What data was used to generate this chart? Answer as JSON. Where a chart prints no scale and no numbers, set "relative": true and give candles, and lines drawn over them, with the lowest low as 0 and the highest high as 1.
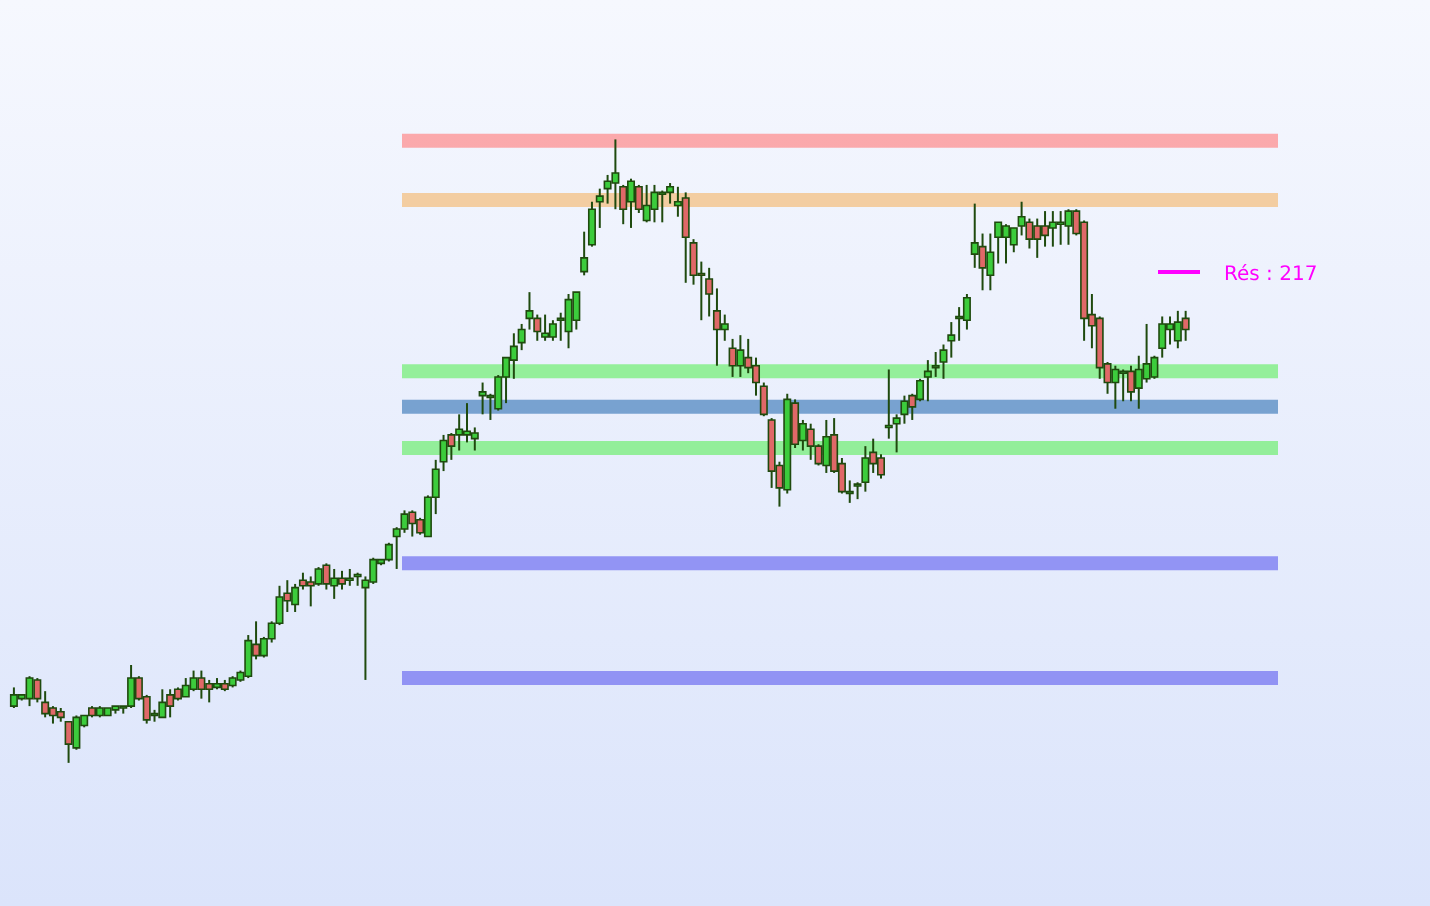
{
  "chart_data": {
    "type": "candlestick",
    "relative": true,
    "categories": [
      null,
      null,
      null,
      null,
      null,
      null,
      null,
      null,
      null,
      null,
      null,
      null,
      null,
      null,
      null,
      null,
      null,
      null,
      null,
      null,
      null,
      null,
      null,
      null,
      null,
      null,
      null,
      null,
      null,
      null,
      null,
      null,
      null,
      null,
      null,
      null,
      null,
      null,
      null,
      null,
      null,
      null,
      null,
      null,
      null,
      null,
      null,
      null,
      null,
      null,
      null,
      null,
      null,
      null,
      null,
      null,
      null,
      null,
      null,
      null,
      null,
      null,
      null,
      null,
      null,
      null,
      null,
      null,
      null,
      null,
      null,
      null,
      null,
      null,
      null,
      null,
      null,
      null,
      null,
      null,
      null,
      null,
      null,
      null,
      null,
      null,
      null,
      null,
      null,
      null,
      null,
      null,
      null,
      null,
      null,
      null,
      null,
      null,
      null,
      null,
      null,
      null,
      null,
      null,
      null,
      null,
      null,
      null,
      null,
      null,
      null,
      null,
      null,
      null,
      null,
      null,
      null,
      null,
      null,
      null,
      null,
      null,
      null,
      null,
      null,
      null,
      null,
      null,
      null,
      null,
      null,
      null,
      null,
      null,
      null,
      null,
      null,
      null,
      null,
      null,
      null,
      null,
      null,
      null,
      null,
      null,
      null,
      null,
      null,
      null,
      null
    ],
    "ohlc": [
      [
        0.091,
        0.121,
        0.088,
        0.109
      ],
      [
        0.103,
        0.109,
        0.1,
        0.109
      ],
      [
        0.103,
        0.139,
        0.091,
        0.136
      ],
      [
        0.133,
        0.136,
        0.097,
        0.103
      ],
      [
        0.097,
        0.115,
        0.073,
        0.079
      ],
      [
        0.088,
        0.091,
        0.063,
        0.076
      ],
      [
        0.082,
        0.088,
        0.066,
        0.073
      ],
      [
        0.066,
        0.066,
        0,
        0.03
      ],
      [
        0.024,
        0.076,
        0.021,
        0.073
      ],
      [
        0.06,
        0.076,
        0.057,
        0.076
      ],
      [
        0.088,
        0.091,
        0.073,
        0.076
      ],
      [
        0.076,
        0.091,
        0.073,
        0.088
      ],
      [
        0.076,
        0.088,
        0.076,
        0.088
      ],
      [
        0.085,
        0.091,
        0.079,
        0.091
      ],
      [
        0.088,
        0.091,
        0.079,
        0.091
      ],
      [
        0.091,
        0.157,
        0.088,
        0.136
      ],
      [
        0.136,
        0.139,
        0.1,
        0.103
      ],
      [
        0.106,
        0.109,
        0.063,
        0.069
      ],
      [
        0.076,
        0.085,
        0.066,
        0.079
      ],
      [
        0.073,
        0.118,
        0.073,
        0.097
      ],
      [
        0.109,
        0.118,
        0.073,
        0.091
      ],
      [
        0.118,
        0.121,
        0.1,
        0.103
      ],
      [
        0.106,
        0.136,
        0.106,
        0.124
      ],
      [
        0.118,
        0.148,
        0.115,
        0.136
      ],
      [
        0.136,
        0.148,
        0.103,
        0.118
      ],
      [
        0.127,
        0.133,
        0.097,
        0.118
      ],
      [
        0.121,
        0.136,
        0.118,
        0.127
      ],
      [
        0.127,
        0.133,
        0.115,
        0.118
      ],
      [
        0.124,
        0.139,
        0.121,
        0.136
      ],
      [
        0.133,
        0.148,
        0.13,
        0.145
      ],
      [
        0.139,
        0.205,
        0.136,
        0.196
      ],
      [
        0.19,
        0.227,
        0.166,
        0.172
      ],
      [
        0.172,
        0.202,
        0.169,
        0.199
      ],
      [
        0.199,
        0.227,
        0.193,
        0.224
      ],
      [
        0.224,
        0.284,
        0.221,
        0.266
      ],
      [
        0.272,
        0.293,
        0.242,
        0.26
      ],
      [
        0.254,
        0.287,
        0.242,
        0.281
      ],
      [
        0.293,
        0.305,
        0.278,
        0.284
      ],
      [
        0.29,
        0.299,
        0.251,
        0.284
      ],
      [
        0.287,
        0.314,
        0.284,
        0.311
      ],
      [
        0.317,
        0.32,
        0.278,
        0.287
      ],
      [
        0.284,
        0.311,
        0.263,
        0.296
      ],
      [
        0.296,
        0.308,
        0.278,
        0.287
      ],
      [
        0.293,
        0.311,
        0.284,
        0.296
      ],
      [
        0.299,
        0.305,
        0.284,
        0.302
      ],
      [
        0.281,
        0.299,
        0.133,
        0.293
      ],
      [
        0.29,
        0.329,
        0.287,
        0.326
      ],
      [
        0.32,
        0.326,
        0.317,
        0.326
      ],
      [
        0.326,
        0.353,
        0.323,
        0.35
      ],
      [
        0.363,
        0.378,
        0.311,
        0.375
      ],
      [
        0.375,
        0.405,
        0.369,
        0.399
      ],
      [
        0.402,
        0.405,
        0.363,
        0.384
      ],
      [
        0.39,
        0.393,
        0.366,
        0.369
      ],
      [
        0.363,
        0.429,
        0.363,
        0.426
      ],
      [
        0.426,
        0.486,
        0.399,
        0.471
      ],
      [
        0.483,
        0.526,
        0.468,
        0.517
      ],
      [
        0.526,
        0.529,
        0.486,
        0.508
      ],
      [
        0.526,
        0.559,
        0.501,
        0.535
      ],
      [
        0.526,
        0.577,
        0.514,
        0.532
      ],
      [
        0.52,
        0.538,
        0.501,
        0.529
      ],
      [
        0.589,
        0.61,
        0.559,
        0.595
      ],
      [
        0.586,
        0.592,
        0.55,
        0.589
      ],
      [
        0.568,
        0.622,
        0.565,
        0.619
      ],
      [
        0.619,
        0.65,
        0.577,
        0.65
      ],
      [
        0.646,
        0.689,
        0.616,
        0.668
      ],
      [
        0.674,
        0.704,
        0.662,
        0.695
      ],
      [
        0.713,
        0.755,
        0.695,
        0.725
      ],
      [
        0.713,
        0.719,
        0.677,
        0.692
      ],
      [
        0.683,
        0.719,
        0.677,
        0.689
      ],
      [
        0.683,
        0.71,
        0.677,
        0.704
      ],
      [
        0.71,
        0.722,
        0.677,
        0.713
      ],
      [
        0.692,
        0.752,
        0.665,
        0.743
      ],
      [
        0.71,
        0.755,
        0.695,
        0.755
      ],
      [
        0.788,
        0.852,
        0.782,
        0.81
      ],
      [
        0.831,
        0.9,
        0.828,
        0.888
      ],
      [
        0.9,
        0.921,
        0.858,
        0.909
      ],
      [
        0.921,
        0.943,
        0.897,
        0.933
      ],
      [
        0.93,
        1,
        0.888,
        0.946
      ],
      [
        0.924,
        0.927,
        0.864,
        0.888
      ],
      [
        0.9,
        0.937,
        0.858,
        0.933
      ],
      [
        0.924,
        0.927,
        0.882,
        0.888
      ],
      [
        0.87,
        0.927,
        0.867,
        0.894
      ],
      [
        0.888,
        0.927,
        0.867,
        0.915
      ],
      [
        0.912,
        0.918,
        0.867,
        0.915
      ],
      [
        0.915,
        0.93,
        0.897,
        0.924
      ],
      [
        0.894,
        0.924,
        0.876,
        0.9
      ],
      [
        0.906,
        0.915,
        0.77,
        0.843
      ],
      [
        0.834,
        0.84,
        0.767,
        0.782
      ],
      [
        0.785,
        0.804,
        0.71,
        0.782
      ],
      [
        0.776,
        0.794,
        0.716,
        0.752
      ],
      [
        0.725,
        0.761,
        0.637,
        0.695
      ],
      [
        0.695,
        0.719,
        0.677,
        0.704
      ],
      [
        0.665,
        0.68,
        0.619,
        0.637
      ],
      [
        0.637,
        0.686,
        0.619,
        0.662
      ],
      [
        0.65,
        0.68,
        0.625,
        0.634
      ],
      [
        0.637,
        0.65,
        0.589,
        0.61
      ],
      [
        0.604,
        0.61,
        0.556,
        0.559
      ],
      [
        0.55,
        0.553,
        0.441,
        0.468
      ],
      [
        0.477,
        0.483,
        0.411,
        0.441
      ],
      [
        0.438,
        0.592,
        0.432,
        0.583
      ],
      [
        0.577,
        0.583,
        0.505,
        0.511
      ],
      [
        0.517,
        0.55,
        0.501,
        0.544
      ],
      [
        0.535,
        0.544,
        0.486,
        0.508
      ],
      [
        0.508,
        0.511,
        0.477,
        0.48
      ],
      [
        0.477,
        0.55,
        0.465,
        0.523
      ],
      [
        0.526,
        0.553,
        0.465,
        0.468
      ],
      [
        0.48,
        0.489,
        0.432,
        0.435
      ],
      [
        0.432,
        0.453,
        0.417,
        0.435
      ],
      [
        0.444,
        0.45,
        0.423,
        0.447
      ],
      [
        0.45,
        0.508,
        0.435,
        0.489
      ],
      [
        0.498,
        0.52,
        0.465,
        0.48
      ],
      [
        0.489,
        0.495,
        0.456,
        0.462
      ],
      [
        0.538,
        0.631,
        0.52,
        0.541
      ],
      [
        0.544,
        0.559,
        0.498,
        0.553
      ],
      [
        0.559,
        0.589,
        0.544,
        0.58
      ],
      [
        0.589,
        0.592,
        0.55,
        0.571
      ],
      [
        0.583,
        0.616,
        0.58,
        0.613
      ],
      [
        0.619,
        0.646,
        0.58,
        0.628
      ],
      [
        0.634,
        0.659,
        0.619,
        0.637
      ],
      [
        0.643,
        0.671,
        0.616,
        0.662
      ],
      [
        0.677,
        0.707,
        0.65,
        0.686
      ],
      [
        0.713,
        0.731,
        0.677,
        0.716
      ],
      [
        0.71,
        0.752,
        0.695,
        0.746
      ],
      [
        0.816,
        0.897,
        0.794,
        0.834
      ],
      [
        0.828,
        0.849,
        0.758,
        0.794
      ],
      [
        0.782,
        0.849,
        0.758,
        0.819
      ],
      [
        0.843,
        0.867,
        0.801,
        0.867
      ],
      [
        0.843,
        0.864,
        0.801,
        0.861
      ],
      [
        0.831,
        0.858,
        0.819,
        0.858
      ],
      [
        0.861,
        0.9,
        0.846,
        0.876
      ],
      [
        0.867,
        0.873,
        0.825,
        0.84
      ],
      [
        0.861,
        0.873,
        0.81,
        0.84
      ],
      [
        0.861,
        0.885,
        0.828,
        0.846
      ],
      [
        0.858,
        0.885,
        0.828,
        0.867
      ],
      [
        0.864,
        0.885,
        0.831,
        0.867
      ],
      [
        0.861,
        0.888,
        0.831,
        0.885
      ],
      [
        0.885,
        0.888,
        0.846,
        0.849
      ],
      [
        0.867,
        0.87,
        0.677,
        0.713
      ],
      [
        0.719,
        0.752,
        0.665,
        0.701
      ],
      [
        0.713,
        0.716,
        0.616,
        0.634
      ],
      [
        0.64,
        0.643,
        0.592,
        0.61
      ],
      [
        0.61,
        0.637,
        0.568,
        0.631
      ],
      [
        0.625,
        0.631,
        0.58,
        0.628
      ],
      [
        0.628,
        0.637,
        0.58,
        0.595
      ],
      [
        0.601,
        0.653,
        0.568,
        0.631
      ],
      [
        0.616,
        0.704,
        0.61,
        0.64
      ],
      [
        0.619,
        0.653,
        0.616,
        0.65
      ],
      [
        0.665,
        0.716,
        0.65,
        0.704
      ],
      [
        0.695,
        0.716,
        0.671,
        0.704
      ],
      [
        0.677,
        0.725,
        0.665,
        0.707
      ],
      [
        0.713,
        0.725,
        0.677,
        0.695
      ]
    ],
    "ref_lines": [
      {
        "axis": "y",
        "value": 0.998,
        "color": "#ff8080"
      },
      {
        "axis": "y",
        "value": 0.903,
        "color": "#f5b870"
      },
      {
        "axis": "y",
        "value": 0.628,
        "color": "#66ee66"
      },
      {
        "axis": "y",
        "value": 0.571,
        "color": "#3a78b8"
      },
      {
        "axis": "y",
        "value": 0.505,
        "color": "#66ee66"
      },
      {
        "axis": "y",
        "value": 0.32,
        "color": "#6666f0"
      },
      {
        "axis": "y",
        "value": 0.136,
        "color": "#6666f0"
      }
    ],
    "annotations": [
      "Rés : 217"
    ]
  }
}
